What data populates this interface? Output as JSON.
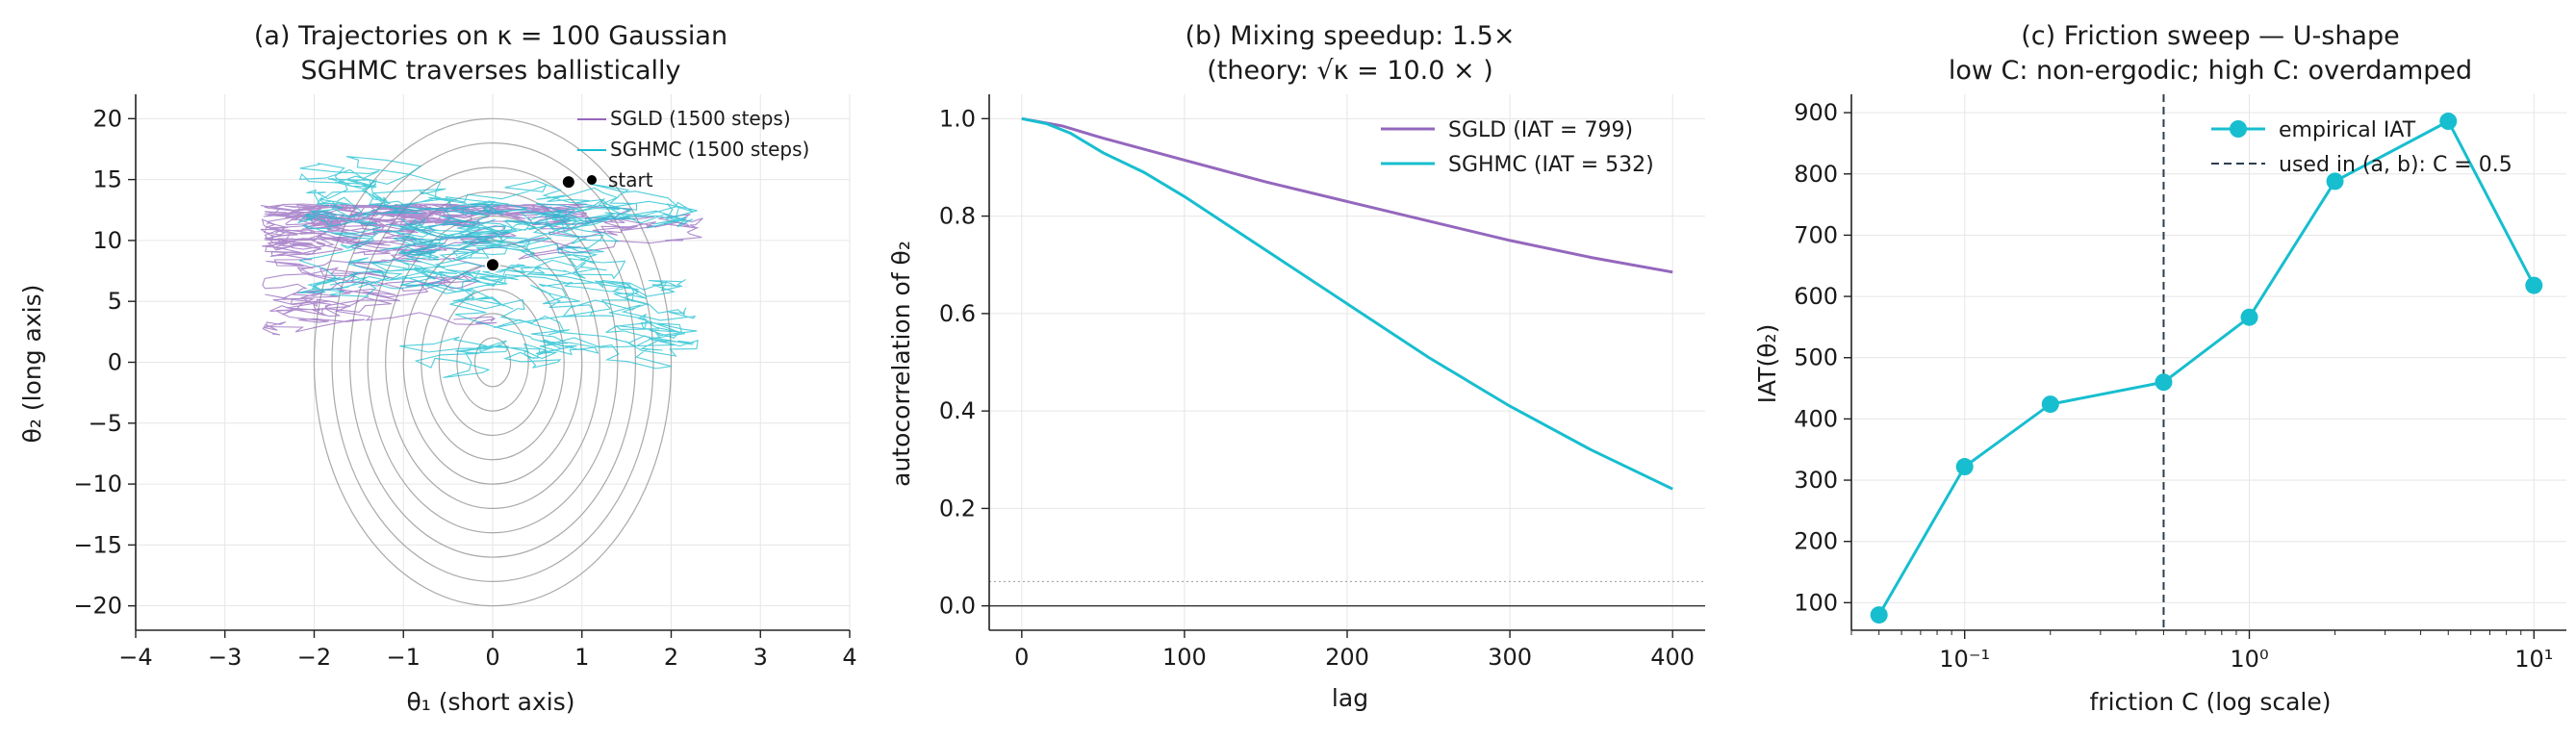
{
  "chart_data": [
    {
      "type": "line",
      "title_line1": "(a) Trajectories on κ = 100 Gaussian",
      "title_line2": "SGHMC traverses ballistically",
      "xlabel": "θ₁ (short axis)",
      "ylabel": "θ₂ (long axis)",
      "xlim": [
        -4,
        4
      ],
      "ylim": [
        -22,
        22
      ],
      "xticks": [
        -4,
        -3,
        -2,
        -1,
        0,
        1,
        2,
        3,
        4
      ],
      "yticks": [
        -20,
        -15,
        -10,
        -5,
        0,
        5,
        10,
        15,
        20
      ],
      "grid": true,
      "legend_position": "top-right",
      "series": [
        {
          "name": "SGLD (1500 steps)",
          "color": "#9467bd",
          "seed": 7,
          "y_range": [
            -5,
            13
          ],
          "x_range": [
            -2.6,
            2.4
          ]
        },
        {
          "name": "SGHMC (1500 steps)",
          "color": "#17becf",
          "seed": 19,
          "y_range": [
            -3,
            21
          ],
          "x_range": [
            -2.2,
            2.3
          ]
        }
      ],
      "markers": [
        {
          "name": "start",
          "x": 0.85,
          "y": 14.8,
          "color": "#000000"
        },
        {
          "name": "",
          "x": 0.0,
          "y": 8.0,
          "color": "#000000"
        }
      ],
      "contours": {
        "center": [
          0,
          0
        ],
        "sx": 0.2,
        "sy": 2.0,
        "levels": [
          1,
          2,
          3,
          4,
          5,
          6,
          7,
          8,
          9,
          10
        ]
      }
    },
    {
      "type": "line",
      "title_line1": "(b) Mixing speedup: 1.5×",
      "title_line2": "(theory: √κ = 10.0 × )",
      "xlabel": "lag",
      "ylabel": "autocorrelation of θ₂",
      "xlim": [
        -20,
        420
      ],
      "ylim": [
        -0.05,
        1.05
      ],
      "xticks": [
        0,
        100,
        200,
        300,
        400
      ],
      "yticks": [
        0.0,
        0.2,
        0.4,
        0.6,
        0.8,
        1.0
      ],
      "grid": true,
      "legend_position": "top-right",
      "hlines": [
        {
          "y": 0.0,
          "style": "solid"
        },
        {
          "y": 0.05,
          "style": "dotted"
        }
      ],
      "series": [
        {
          "name": "SGLD (IAT = 799)",
          "color": "#9467bd",
          "x": [
            0,
            25,
            50,
            100,
            150,
            200,
            250,
            300,
            350,
            400
          ],
          "y": [
            1.0,
            0.985,
            0.96,
            0.915,
            0.87,
            0.83,
            0.79,
            0.75,
            0.715,
            0.685
          ]
        },
        {
          "name": "SGHMC (IAT = 532)",
          "color": "#17becf",
          "x": [
            0,
            15,
            30,
            50,
            75,
            100,
            150,
            200,
            250,
            300,
            350,
            400
          ],
          "y": [
            1.0,
            0.99,
            0.97,
            0.93,
            0.89,
            0.84,
            0.73,
            0.62,
            0.51,
            0.41,
            0.32,
            0.24
          ]
        }
      ]
    },
    {
      "type": "line",
      "title_line1": "(c) Friction sweep — U-shape",
      "title_line2": "low C: non-ergodic; high C: overdamped",
      "xlabel": "friction C (log scale)",
      "ylabel": "IAT(θ₂)",
      "xscale": "log",
      "xlim": [
        0.04,
        13
      ],
      "ylim": [
        55,
        930
      ],
      "xticks": [
        0.1,
        1,
        10
      ],
      "xtick_labels": [
        "10⁻¹",
        "10⁰",
        "10¹"
      ],
      "yticks": [
        100,
        200,
        300,
        400,
        500,
        600,
        700,
        800,
        900
      ],
      "grid": true,
      "legend_position": "top-right",
      "vline": {
        "x": 0.5,
        "name": "used in (a, b): C = 0.5",
        "color": "#2c3e50"
      },
      "series": [
        {
          "name": "empirical IAT",
          "color": "#17becf",
          "x": [
            0.05,
            0.1,
            0.2,
            0.5,
            1,
            2,
            5,
            10
          ],
          "y": [
            80,
            322,
            424,
            460,
            566,
            788,
            886,
            618
          ]
        }
      ]
    }
  ]
}
